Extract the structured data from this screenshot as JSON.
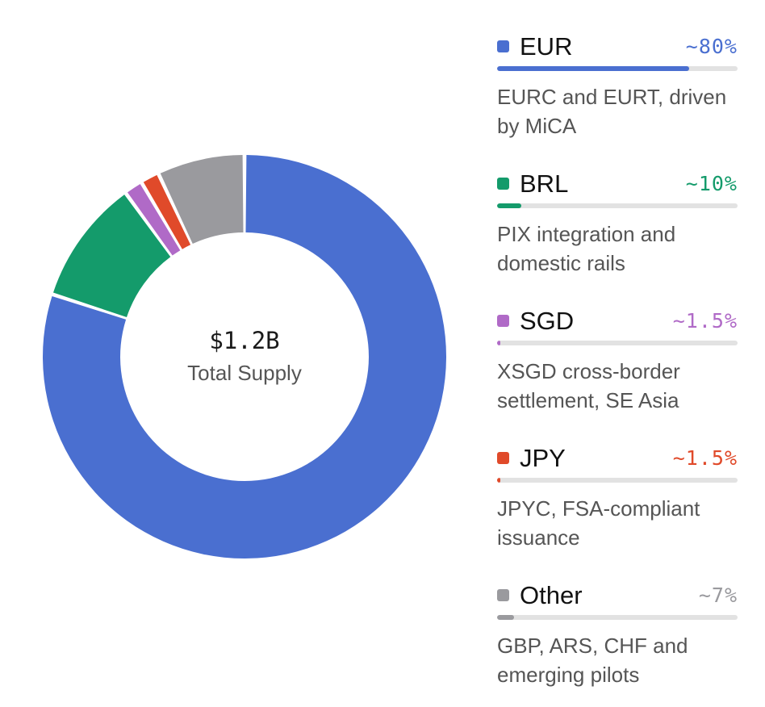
{
  "chart_data": {
    "type": "pie",
    "center": {
      "value": "$1.2B",
      "label": "Total Supply"
    },
    "categories": [
      "EUR",
      "BRL",
      "SGD",
      "JPY",
      "Other"
    ],
    "values": [
      80,
      10,
      1.5,
      1.5,
      7
    ],
    "percent_labels": [
      "~80%",
      "~10%",
      "~1.5%",
      "~1.5%",
      "~7%"
    ],
    "descriptions": [
      "EURC and EURT, driven by MiCA",
      "PIX integration and domestic rails",
      "XSGD cross-border settlement, SE Asia",
      "JPYC, FSA-compliant issuance",
      "GBP, ARS, CHF and emerging pilots"
    ],
    "colors": [
      "#4a6fd0",
      "#149b6b",
      "#b06ac7",
      "#e04a2a",
      "#9a9a9e"
    ],
    "legend_position": "right"
  }
}
